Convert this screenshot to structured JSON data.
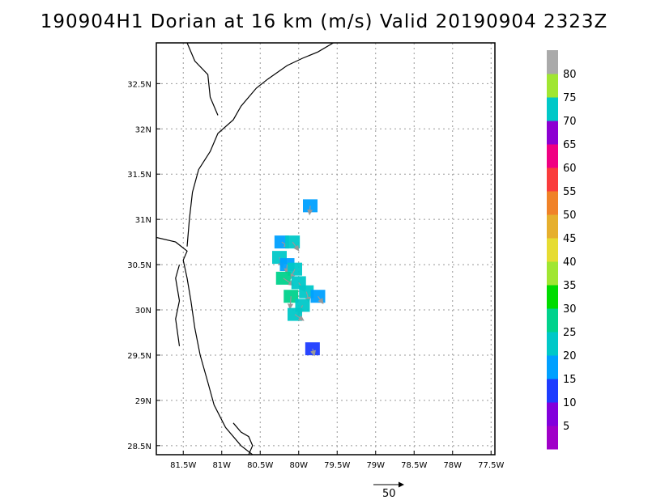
{
  "title": "190904H1 Dorian at 16 km (m/s) Valid 20190904 2323Z",
  "map": {
    "lon_range": [
      -81.85,
      -77.45
    ],
    "lat_range": [
      28.4,
      32.95
    ],
    "lon_ticks": [
      {
        "value": -81.5,
        "label": "81.5W"
      },
      {
        "value": -81.0,
        "label": "81W"
      },
      {
        "value": -80.5,
        "label": "80.5W"
      },
      {
        "value": -80.0,
        "label": "80W"
      },
      {
        "value": -79.5,
        "label": "79.5W"
      },
      {
        "value": -79.0,
        "label": "79W"
      },
      {
        "value": -78.5,
        "label": "78.5W"
      },
      {
        "value": -78.0,
        "label": "78W"
      },
      {
        "value": -77.5,
        "label": "77.5W"
      }
    ],
    "lat_ticks": [
      {
        "value": 28.5,
        "label": "28.5N"
      },
      {
        "value": 29.0,
        "label": "29N"
      },
      {
        "value": 29.5,
        "label": "29.5N"
      },
      {
        "value": 30.0,
        "label": "30N"
      },
      {
        "value": 30.5,
        "label": "30.5N"
      },
      {
        "value": 31.0,
        "label": "31N"
      },
      {
        "value": 31.5,
        "label": "31.5N"
      },
      {
        "value": 32.0,
        "label": "32N"
      },
      {
        "value": 32.5,
        "label": "32.5N"
      }
    ],
    "grid": "dotted",
    "coastline": [
      [
        -81.85,
        30.8
      ],
      [
        -81.6,
        30.75
      ],
      [
        -81.45,
        30.65
      ],
      [
        -81.5,
        30.55
      ],
      [
        -81.45,
        30.35
      ],
      [
        -81.4,
        30.1
      ],
      [
        -81.35,
        29.8
      ],
      [
        -81.28,
        29.5
      ],
      [
        -81.18,
        29.2
      ],
      [
        -81.1,
        28.95
      ],
      [
        -80.95,
        28.7
      ],
      [
        -80.75,
        28.5
      ],
      [
        -80.6,
        28.4
      ]
    ],
    "coastline_north": [
      [
        -81.45,
        30.7
      ],
      [
        -81.42,
        31.0
      ],
      [
        -81.38,
        31.3
      ],
      [
        -81.3,
        31.55
      ],
      [
        -81.15,
        31.75
      ],
      [
        -81.05,
        31.95
      ],
      [
        -80.85,
        32.1
      ],
      [
        -80.75,
        32.25
      ],
      [
        -80.55,
        32.45
      ],
      [
        -80.4,
        32.55
      ],
      [
        -80.15,
        32.7
      ],
      [
        -79.95,
        32.78
      ],
      [
        -79.75,
        32.85
      ],
      [
        -79.55,
        32.95
      ]
    ],
    "inland_river": [
      [
        -81.55,
        30.5
      ],
      [
        -81.6,
        30.35
      ],
      [
        -81.55,
        30.1
      ],
      [
        -81.6,
        29.9
      ],
      [
        -81.55,
        29.6
      ]
    ],
    "inland_north": [
      [
        -81.45,
        32.95
      ],
      [
        -81.35,
        32.75
      ],
      [
        -81.18,
        32.6
      ],
      [
        -81.15,
        32.35
      ],
      [
        -81.05,
        32.15
      ]
    ],
    "cape_outline": [
      [
        -80.85,
        28.75
      ],
      [
        -80.75,
        28.65
      ],
      [
        -80.65,
        28.6
      ],
      [
        -80.6,
        28.5
      ],
      [
        -80.65,
        28.4
      ]
    ]
  },
  "colorbar": {
    "labels": [
      "5",
      "10",
      "15",
      "20",
      "25",
      "30",
      "35",
      "40",
      "45",
      "50",
      "55",
      "60",
      "65",
      "70",
      "75",
      "80"
    ],
    "colors": [
      "#a000c8",
      "#8200dc",
      "#1e3cff",
      "#00a0ff",
      "#00c8c8",
      "#00d28c",
      "#00dc00",
      "#a0e632",
      "#e6dc32",
      "#e6af2d",
      "#f08228",
      "#fa3c3c",
      "#f00082",
      "#8c00d2",
      "#00c8c8",
      "#a0e632",
      "#aaaaaa"
    ]
  },
  "wind_field": {
    "cells": [
      {
        "lon": -80.22,
        "lat": 30.75,
        "value": 15
      },
      {
        "lon": -80.08,
        "lat": 30.75,
        "value": 20
      },
      {
        "lon": -80.25,
        "lat": 30.58,
        "value": 20
      },
      {
        "lon": -80.15,
        "lat": 30.5,
        "value": 15
      },
      {
        "lon": -80.05,
        "lat": 30.45,
        "value": 20
      },
      {
        "lon": -80.2,
        "lat": 30.35,
        "value": 25
      },
      {
        "lon": -80.0,
        "lat": 30.3,
        "value": 20
      },
      {
        "lon": -79.9,
        "lat": 30.2,
        "value": 20
      },
      {
        "lon": -80.1,
        "lat": 30.15,
        "value": 25
      },
      {
        "lon": -79.95,
        "lat": 30.05,
        "value": 20
      },
      {
        "lon": -80.05,
        "lat": 29.95,
        "value": 20
      },
      {
        "lon": -79.75,
        "lat": 30.15,
        "value": 15
      },
      {
        "lon": -79.82,
        "lat": 29.57,
        "value": 10
      },
      {
        "lon": -79.85,
        "lat": 31.15,
        "value": 15
      }
    ]
  },
  "vector_legend": {
    "label": "50"
  }
}
